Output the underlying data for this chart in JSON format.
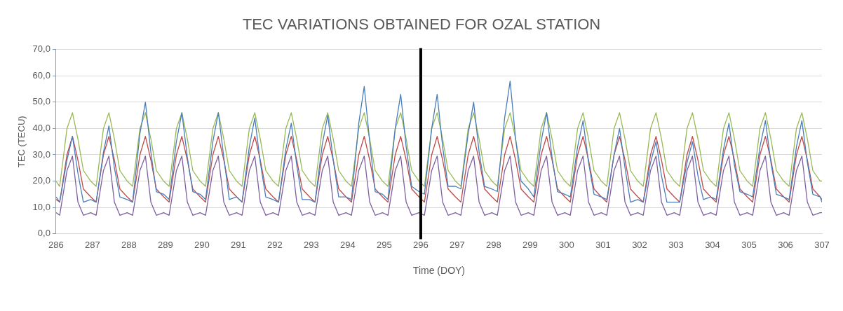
{
  "chart_data": {
    "type": "line",
    "title": "TEC VARIATIONS OBTAINED FOR OZAL STATION",
    "xlabel": "Time (DOY)",
    "ylabel": "TEC (TECU)",
    "x": [
      286,
      286.1,
      286.3,
      286.45,
      286.6,
      286.75,
      286.95,
      287.1,
      287.3,
      287.45,
      287.6,
      287.75,
      287.95,
      288.1,
      288.3,
      288.45,
      288.6,
      288.75,
      288.95,
      289.1,
      289.3,
      289.45,
      289.6,
      289.75,
      289.95,
      290.1,
      290.3,
      290.45,
      290.6,
      290.75,
      290.95,
      291.1,
      291.3,
      291.45,
      291.6,
      291.75,
      291.95,
      292.1,
      292.3,
      292.45,
      292.6,
      292.75,
      292.95,
      293.1,
      293.3,
      293.45,
      293.6,
      293.75,
      293.95,
      294.1,
      294.3,
      294.45,
      294.6,
      294.75,
      294.95,
      295.1,
      295.3,
      295.45,
      295.6,
      295.75,
      295.95,
      296.1,
      296.3,
      296.45,
      296.6,
      296.75,
      296.95,
      297.1,
      297.3,
      297.45,
      297.6,
      297.75,
      297.95,
      298.1,
      298.3,
      298.45,
      298.6,
      298.75,
      298.95,
      299.1,
      299.3,
      299.45,
      299.6,
      299.75,
      299.95,
      300.1,
      300.3,
      300.45,
      300.6,
      300.75,
      300.95,
      301.1,
      301.3,
      301.45,
      301.6,
      301.75,
      301.95,
      302.1,
      302.3,
      302.45,
      302.6,
      302.75,
      302.95,
      303.1,
      303.3,
      303.45,
      303.6,
      303.75,
      303.95,
      304.1,
      304.3,
      304.45,
      304.6,
      304.75,
      304.95,
      305.1,
      305.3,
      305.45,
      305.6,
      305.75,
      305.95,
      306.1,
      306.3,
      306.45,
      306.6,
      306.75,
      306.95,
      307
    ],
    "series": [
      {
        "color": "#4a7ebb",
        "values": [
          14,
          12,
          28,
          37,
          23,
          12,
          13,
          12,
          31,
          41,
          25,
          14,
          13,
          12,
          38,
          50,
          31,
          16,
          15,
          13,
          35,
          46,
          29,
          16,
          15,
          13,
          35,
          46,
          29,
          13,
          14,
          12,
          33,
          44,
          27,
          14,
          13,
          12,
          32,
          42,
          26,
          13,
          13,
          12,
          34,
          45,
          28,
          14,
          14,
          13,
          42,
          56,
          35,
          16,
          15,
          13,
          40,
          53,
          33,
          18,
          16,
          15,
          40,
          53,
          33,
          18,
          18,
          17,
          38,
          50,
          31,
          18,
          17,
          16,
          44,
          58,
          36,
          20,
          17,
          14,
          35,
          46,
          29,
          16,
          15,
          14,
          33,
          43,
          27,
          15,
          14,
          13,
          30,
          40,
          25,
          12,
          13,
          12,
          27,
          35,
          22,
          12,
          12,
          12,
          27,
          35,
          22,
          13,
          14,
          13,
          32,
          42,
          26,
          16,
          15,
          14,
          33,
          43,
          27,
          15,
          14,
          13,
          33,
          43,
          27,
          15,
          14,
          12
        ]
      },
      {
        "color": "#be4b48",
        "values": [
          13,
          12,
          30,
          37,
          28,
          17,
          14,
          12,
          30,
          37,
          28,
          17,
          14,
          12,
          30,
          37,
          28,
          17,
          14,
          12,
          30,
          37,
          28,
          17,
          14,
          12,
          30,
          37,
          28,
          17,
          14,
          12,
          30,
          37,
          28,
          17,
          14,
          12,
          30,
          37,
          28,
          17,
          14,
          12,
          30,
          37,
          28,
          17,
          14,
          12,
          30,
          37,
          28,
          17,
          14,
          12,
          30,
          37,
          28,
          17,
          14,
          12,
          30,
          37,
          28,
          17,
          14,
          12,
          30,
          37,
          28,
          17,
          14,
          12,
          30,
          37,
          28,
          17,
          14,
          12,
          30,
          37,
          28,
          17,
          14,
          12,
          30,
          37,
          28,
          17,
          14,
          12,
          30,
          37,
          28,
          17,
          14,
          12,
          30,
          37,
          28,
          17,
          14,
          12,
          30,
          37,
          28,
          17,
          14,
          12,
          30,
          37,
          28,
          17,
          14,
          12,
          30,
          37,
          28,
          17,
          14,
          12,
          30,
          37,
          28,
          17,
          14,
          13
        ]
      },
      {
        "color": "#98b954",
        "values": [
          20,
          18,
          40,
          46,
          36,
          24,
          20,
          18,
          40,
          46,
          36,
          24,
          20,
          18,
          40,
          46,
          36,
          24,
          20,
          18,
          40,
          46,
          36,
          24,
          20,
          18,
          40,
          46,
          36,
          24,
          20,
          18,
          40,
          46,
          36,
          24,
          20,
          18,
          40,
          46,
          36,
          24,
          20,
          18,
          40,
          46,
          36,
          24,
          20,
          18,
          40,
          46,
          36,
          24,
          20,
          18,
          40,
          46,
          36,
          24,
          20,
          18,
          40,
          46,
          36,
          24,
          20,
          18,
          40,
          46,
          36,
          24,
          20,
          18,
          40,
          46,
          36,
          24,
          20,
          18,
          40,
          46,
          36,
          24,
          20,
          18,
          40,
          46,
          36,
          24,
          20,
          18,
          40,
          46,
          36,
          24,
          20,
          18,
          40,
          46,
          36,
          24,
          20,
          18,
          40,
          46,
          36,
          24,
          20,
          18,
          40,
          46,
          36,
          24,
          20,
          18,
          40,
          46,
          36,
          24,
          20,
          18,
          40,
          46,
          36,
          24,
          20,
          20
        ]
      },
      {
        "color": "#7d60a0",
        "values": [
          8,
          7,
          24,
          29.5,
          12,
          7,
          8,
          7,
          24,
          29.5,
          12,
          7,
          8,
          7,
          24,
          29.5,
          12,
          7,
          8,
          7,
          24,
          29.5,
          12,
          7,
          8,
          7,
          24,
          29.5,
          12,
          7,
          8,
          7,
          24,
          29.5,
          12,
          7,
          8,
          7,
          24,
          29.5,
          12,
          7,
          8,
          7,
          24,
          29.5,
          12,
          7,
          8,
          7,
          24,
          29.5,
          12,
          7,
          8,
          7,
          24,
          29.5,
          12,
          7,
          8,
          7,
          24,
          29.5,
          12,
          7,
          8,
          7,
          24,
          29.5,
          12,
          7,
          8,
          7,
          24,
          29.5,
          12,
          7,
          8,
          7,
          24,
          29.5,
          12,
          7,
          8,
          7,
          24,
          29.5,
          12,
          7,
          8,
          7,
          24,
          29.5,
          12,
          7,
          8,
          7,
          24,
          29.5,
          12,
          7,
          8,
          7,
          24,
          29.5,
          12,
          7,
          8,
          7,
          24,
          29.5,
          12,
          7,
          8,
          7,
          24,
          29.5,
          12,
          7,
          8,
          7,
          24,
          29.5,
          12,
          7,
          8,
          8
        ]
      }
    ],
    "xlim": [
      286,
      307
    ],
    "xticks": [
      286,
      287,
      288,
      289,
      290,
      291,
      292,
      293,
      294,
      295,
      296,
      297,
      298,
      299,
      300,
      301,
      302,
      303,
      304,
      305,
      306,
      307
    ],
    "ylim": [
      0,
      70
    ],
    "yticks": [
      {
        "value": 0,
        "label": "0,0"
      },
      {
        "value": 10,
        "label": "10,0"
      },
      {
        "value": 20,
        "label": "20,0"
      },
      {
        "value": 30,
        "label": "30,0"
      },
      {
        "value": 40,
        "label": "40,0"
      },
      {
        "value": 50,
        "label": "50,0"
      },
      {
        "value": 60,
        "label": "60,0"
      },
      {
        "value": 70,
        "label": "70,0"
      }
    ],
    "grid": "y",
    "ref_lines": [
      {
        "axis": "x",
        "value": 296,
        "color": "#000000"
      }
    ]
  }
}
